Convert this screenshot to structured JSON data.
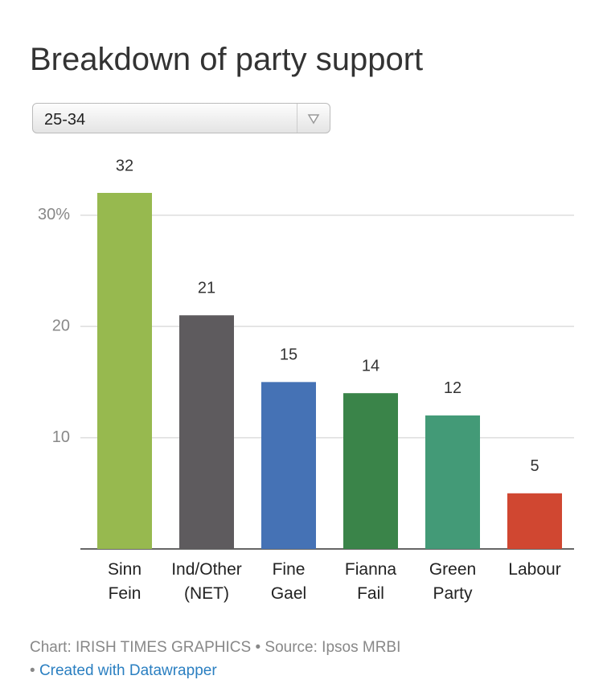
{
  "chart_data": {
    "type": "bar",
    "title": "Breakdown of party support",
    "categories": [
      "Sinn Fein",
      "Ind/Other (NET)",
      "Fine Gael",
      "Fianna Fail",
      "Green Party",
      "Labour"
    ],
    "values": [
      32,
      21,
      15,
      14,
      12,
      5
    ],
    "colors": [
      "#97b94f",
      "#5e5b5e",
      "#4572b5",
      "#3a8449",
      "#439a77",
      "#d04731"
    ],
    "ylim": [
      0,
      32
    ],
    "yticks": [
      10,
      20,
      {
        "value": 30,
        "label": "30%"
      }
    ],
    "grid": true
  },
  "controls": {
    "dropdown": "25-34"
  },
  "footer": {
    "source": "Chart: IRISH TIMES GRAPHICS • Source: Ipsos MRBI",
    "separator": "•",
    "link": "Created with Datawrapper"
  }
}
